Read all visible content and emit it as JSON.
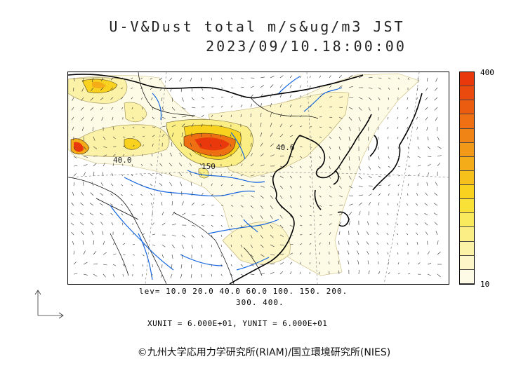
{
  "title_line1": "U-V&Dust total m/s&ug/m3 JST",
  "title_line2": "2023/09/10.18:00:00",
  "colorbar": {
    "max_label": "400",
    "min_label": "10",
    "colors": [
      "#fdfbe6",
      "#fcf6c8",
      "#fbf2a8",
      "#faee84",
      "#f9ea5d",
      "#fae138",
      "#f8d21e",
      "#f6c11a",
      "#f4ad18",
      "#f29917",
      "#f08415",
      "#ee7012",
      "#ec5c10",
      "#ea4a0e",
      "#e8380c"
    ]
  },
  "contour_labels": {
    "lev_line1": "lev= 10.0 20.0 40.0 60.0 100. 150. 200.",
    "lev_line2": "300. 400."
  },
  "map_labels": {
    "label_40_west": "40.0",
    "label_40_east": "40.0",
    "label_150": "150"
  },
  "units_text": "XUNIT = 6.000E+01, YUNIT = 6.000E+01",
  "copyright": "©九州大学応用力学研究所(RIAM)/国立環境研究所(NIES)"
}
